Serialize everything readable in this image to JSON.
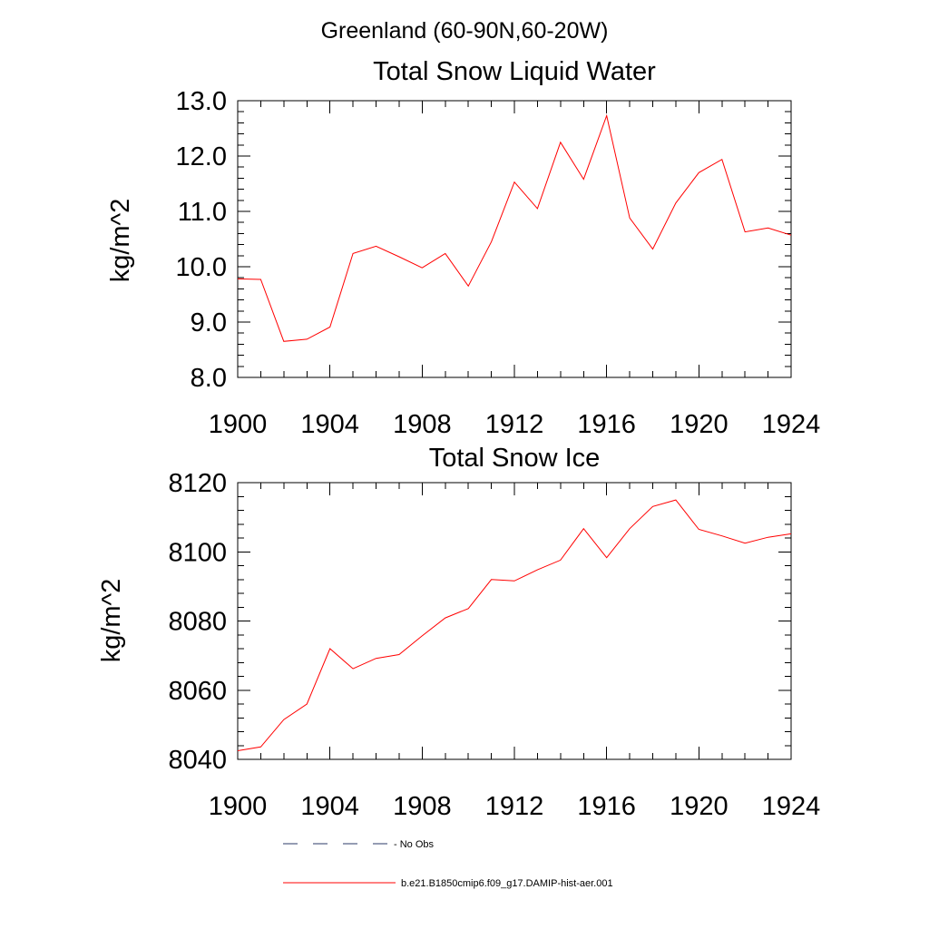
{
  "figure": {
    "suptitle": "Greenland (60-90N,60-20W)"
  },
  "legend": {
    "items": [
      {
        "label": "- No Obs",
        "color": "#2b3a67",
        "dash": "dashed"
      },
      {
        "label": "b.e21.B1850cmip6.f09_g17.DAMIP-hist-aer.001",
        "color": "#ff0000",
        "dash": "solid"
      }
    ]
  },
  "chart_data": [
    {
      "type": "line",
      "title": "Total Snow Liquid Water",
      "ylabel": "kg/m^2",
      "xlim": [
        1900,
        1924
      ],
      "ylim": [
        8.0,
        13.0
      ],
      "xticks": [
        1900,
        1904,
        1908,
        1912,
        1916,
        1920,
        1924
      ],
      "xtick_labels": [
        "1900",
        "1904",
        "1908",
        "1912",
        "1916",
        "1920",
        "1924"
      ],
      "yticks": [
        8.0,
        9.0,
        10.0,
        11.0,
        12.0,
        13.0
      ],
      "ytick_labels": [
        "8.0",
        "9.0",
        "10.0",
        "11.0",
        "12.0",
        "13.0"
      ],
      "series": [
        {
          "name": "b.e21.B1850cmip6.f09_g17.DAMIP-hist-aer.001",
          "color": "#ff0000",
          "x": [
            1900,
            1901,
            1902,
            1903,
            1904,
            1905,
            1906,
            1907,
            1908,
            1909,
            1910,
            1911,
            1912,
            1913,
            1914,
            1915,
            1916,
            1917,
            1918,
            1919,
            1920,
            1921,
            1922,
            1923,
            1924
          ],
          "y": [
            9.78,
            9.77,
            8.65,
            8.69,
            8.91,
            10.24,
            10.37,
            10.18,
            9.98,
            10.24,
            9.65,
            10.45,
            11.53,
            11.05,
            12.25,
            11.58,
            12.73,
            10.88,
            10.32,
            11.15,
            11.7,
            11.94,
            10.63,
            10.7,
            10.57
          ]
        }
      ]
    },
    {
      "type": "line",
      "title": "Total Snow Ice",
      "ylabel": "kg/m^2",
      "xlim": [
        1900,
        1924
      ],
      "ylim": [
        8040,
        8120
      ],
      "xticks": [
        1900,
        1904,
        1908,
        1912,
        1916,
        1920,
        1924
      ],
      "xtick_labels": [
        "1900",
        "1904",
        "1908",
        "1912",
        "1916",
        "1920",
        "1924"
      ],
      "yticks": [
        8040,
        8060,
        8080,
        8100,
        8120
      ],
      "ytick_labels": [
        "8040",
        "8060",
        "8080",
        "8100",
        "8120"
      ],
      "series": [
        {
          "name": "b.e21.B1850cmip6.f09_g17.DAMIP-hist-aer.001",
          "color": "#ff0000",
          "x": [
            1900,
            1901,
            1902,
            1903,
            1904,
            1905,
            1906,
            1907,
            1908,
            1909,
            1910,
            1911,
            1912,
            1913,
            1914,
            1915,
            1916,
            1917,
            1918,
            1919,
            1920,
            1921,
            1922,
            1923,
            1924
          ],
          "y": [
            8042.5,
            8043.6,
            8051.5,
            8056.0,
            8072.0,
            8066.2,
            8069.2,
            8070.3,
            8075.7,
            8080.9,
            8083.6,
            8092.0,
            8091.6,
            8094.8,
            8097.6,
            8106.7,
            8098.3,
            8106.7,
            8113.1,
            8115.0,
            8106.5,
            8104.6,
            8102.5,
            8104.2,
            8105.2
          ]
        }
      ]
    }
  ]
}
